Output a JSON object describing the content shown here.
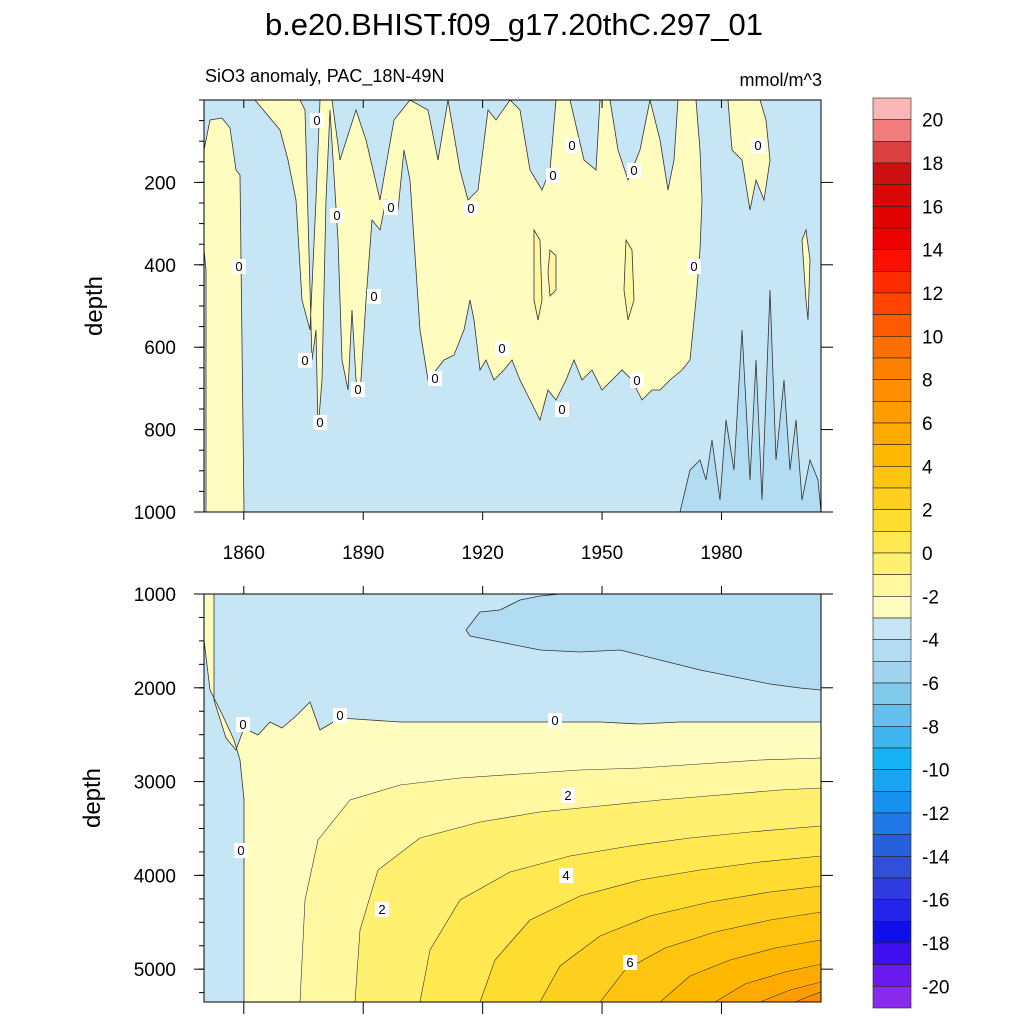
{
  "chart_data": {
    "type": "contour",
    "title": "b.e20.BHIST.f09_g17.20thC.297_01",
    "subtitle_left": "SiO3 anomaly, PAC_18N-49N",
    "subtitle_right": "mmol/m^3",
    "x_range": [
      1850,
      2005
    ],
    "x_ticks": [
      1860,
      1890,
      1920,
      1950,
      1980
    ],
    "x_tick_labels": [
      "1860",
      "1890",
      "1920",
      "1950",
      "1980"
    ],
    "colorbar": {
      "levels": [
        -20,
        -19,
        -18,
        -17,
        -16,
        -15,
        -14,
        -13,
        -12,
        -11,
        -10,
        -9,
        -8,
        -7,
        -6,
        -5,
        -4,
        -3,
        -2,
        -1,
        0,
        1,
        2,
        3,
        4,
        5,
        6,
        7,
        8,
        9,
        10,
        11,
        12,
        13,
        14,
        15,
        16,
        17,
        18,
        19,
        20
      ],
      "labels": [
        "20",
        "18",
        "16",
        "14",
        "12",
        "10",
        "8",
        "6",
        "4",
        "2",
        "0",
        "-2",
        "-4",
        "-6",
        "-8",
        "-10",
        "-12",
        "-14",
        "-16",
        "-18",
        "-20"
      ],
      "colors_top_to_bottom": [
        "#fbb6b6",
        "#f07c7c",
        "#dc4040",
        "#cc1010",
        "#d80808",
        "#e20000",
        "#ee0000",
        "#fb1000",
        "#ff2c00",
        "#ff4400",
        "#ff5a00",
        "#ff6e00",
        "#ff8000",
        "#ff8e00",
        "#ff9c00",
        "#ffaa00",
        "#ffb800",
        "#ffc410",
        "#ffd020",
        "#ffdc30",
        "#ffe850",
        "#fff070",
        "#fff8a0",
        "#fffcc0",
        "#c6e6f6",
        "#b2dcf2",
        "#a0d4ee",
        "#82caec",
        "#64c0ee",
        "#40b6f0",
        "#14b4f4",
        "#1aa4f4",
        "#1890f0",
        "#2078e6",
        "#2860dc",
        "#3050d8",
        "#2f3ae0",
        "#2424ea",
        "#0f0fee",
        "#3f10ee",
        "#6a1aec",
        "#8a2aee"
      ]
    },
    "panels": [
      {
        "name": "upper",
        "ylabel": "depth",
        "y_range": [
          0,
          1000
        ],
        "y_ticks": [
          200,
          400,
          600,
          800,
          1000
        ],
        "y_tick_labels": [
          "200",
          "400",
          "600",
          "800",
          "1000"
        ],
        "contour_labels": [
          "0",
          "0",
          "0",
          "0",
          "0",
          "0",
          "0",
          "0",
          "0",
          "0",
          "0",
          "0",
          "0",
          "0",
          "0",
          "0",
          "0",
          "0"
        ]
      },
      {
        "name": "lower",
        "ylabel": "depth",
        "y_range": [
          1000,
          5350
        ],
        "y_ticks": [
          1000,
          2000,
          3000,
          4000,
          5000
        ],
        "y_tick_labels": [
          "1000",
          "2000",
          "3000",
          "4000",
          "5000"
        ],
        "contour_labels": [
          "0",
          "0",
          "0",
          "0",
          "2",
          "2",
          "4",
          "6"
        ]
      }
    ]
  }
}
